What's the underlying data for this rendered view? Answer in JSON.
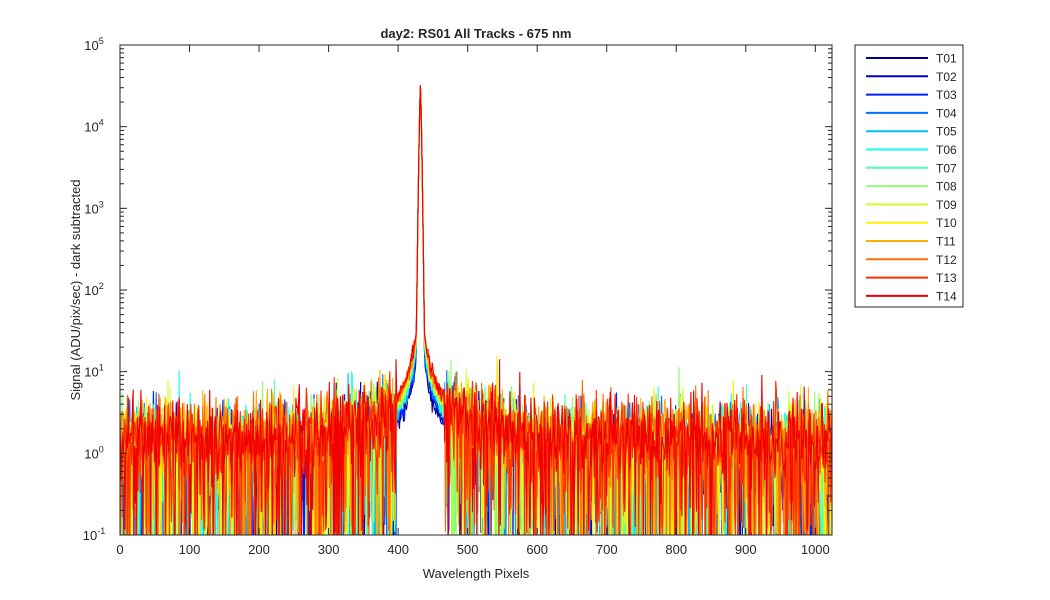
{
  "chart_data": {
    "type": "line",
    "title": "day2: RS01  All Tracks - 675 nm",
    "xlabel": "Wavelength Pixels",
    "ylabel": "Signal (ADU/pix/sec) - dark subtracted",
    "xlim": [
      0,
      1024
    ],
    "ylim": [
      0.1,
      100000
    ],
    "yscale": "log",
    "x_ticks": [
      0,
      100,
      200,
      300,
      400,
      500,
      600,
      700,
      800,
      900,
      1000
    ],
    "x_tick_labels": [
      "0",
      "100",
      "200",
      "300",
      "400",
      "500",
      "600",
      "700",
      "800",
      "900",
      "1000"
    ],
    "y_ticks": [
      0.1,
      1,
      10,
      100,
      1000,
      10000,
      100000
    ],
    "y_tick_labels": [
      {
        "base": "10",
        "exp": "-1"
      },
      {
        "base": "10",
        "exp": "0"
      },
      {
        "base": "10",
        "exp": "1"
      },
      {
        "base": "10",
        "exp": "2"
      },
      {
        "base": "10",
        "exp": "3"
      },
      {
        "base": "10",
        "exp": "4"
      },
      {
        "base": "10",
        "exp": "5"
      }
    ],
    "grid": false,
    "legend_position": "outside-top-right",
    "peak": {
      "x": 432,
      "y": 32000
    },
    "background_level": 1.3,
    "series": [
      {
        "name": "T01",
        "color": "#00008f"
      },
      {
        "name": "T02",
        "color": "#0000d4"
      },
      {
        "name": "T03",
        "color": "#0020ff"
      },
      {
        "name": "T04",
        "color": "#0070ff"
      },
      {
        "name": "T05",
        "color": "#00bfff"
      },
      {
        "name": "T06",
        "color": "#10ffef"
      },
      {
        "name": "T07",
        "color": "#50ffb0"
      },
      {
        "name": "T08",
        "color": "#8fff70"
      },
      {
        "name": "T09",
        "color": "#cfff30"
      },
      {
        "name": "T10",
        "color": "#ffef00"
      },
      {
        "name": "T11",
        "color": "#ffaf00"
      },
      {
        "name": "T12",
        "color": "#ff7000"
      },
      {
        "name": "T13",
        "color": "#ff3000"
      },
      {
        "name": "T14",
        "color": "#f00000"
      }
    ]
  }
}
